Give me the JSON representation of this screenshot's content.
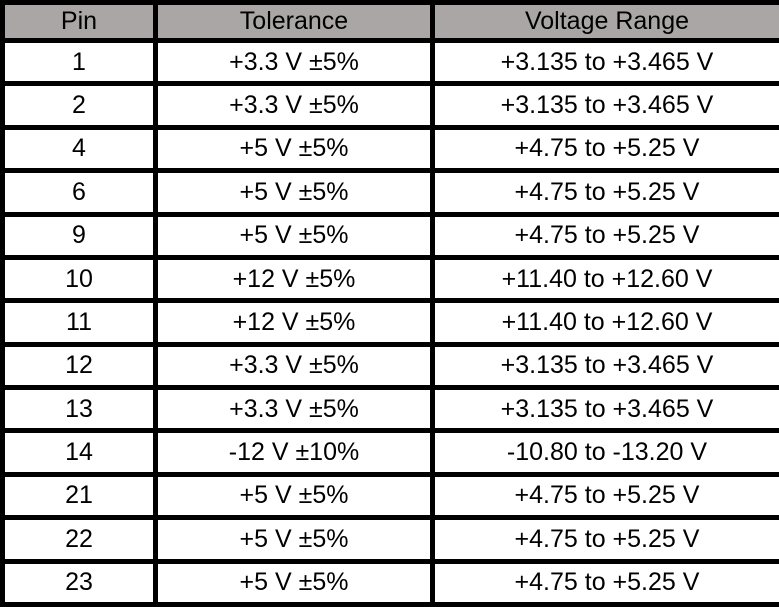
{
  "colors": {
    "header_bg": "#aba6a6",
    "border": "#000000",
    "cell_bg": "#ffffff",
    "text": "#000000"
  },
  "table": {
    "headers": [
      "Pin",
      "Tolerance",
      "Voltage Range"
    ],
    "rows": [
      [
        "1",
        "+3.3 V ±5%",
        "+3.135 to +3.465 V"
      ],
      [
        "2",
        "+3.3 V ±5%",
        "+3.135 to +3.465 V"
      ],
      [
        "4",
        "+5 V ±5%",
        "+4.75 to +5.25 V"
      ],
      [
        "6",
        "+5 V ±5%",
        "+4.75 to +5.25 V"
      ],
      [
        "9",
        "+5 V ±5%",
        "+4.75 to +5.25 V"
      ],
      [
        "10",
        "+12 V ±5%",
        "+11.40 to +12.60 V"
      ],
      [
        "11",
        "+12 V ±5%",
        "+11.40 to +12.60 V"
      ],
      [
        "12",
        "+3.3 V ±5%",
        "+3.135 to +3.465 V"
      ],
      [
        "13",
        "+3.3 V ±5%",
        "+3.135 to +3.465 V"
      ],
      [
        "14",
        "-12 V ±10%",
        "-10.80 to -13.20 V"
      ],
      [
        "21",
        "+5 V ±5%",
        "+4.75 to +5.25 V"
      ],
      [
        "22",
        "+5 V ±5%",
        "+4.75 to +5.25 V"
      ],
      [
        "23",
        "+5 V ±5%",
        "+4.75 to +5.25 V"
      ]
    ]
  }
}
